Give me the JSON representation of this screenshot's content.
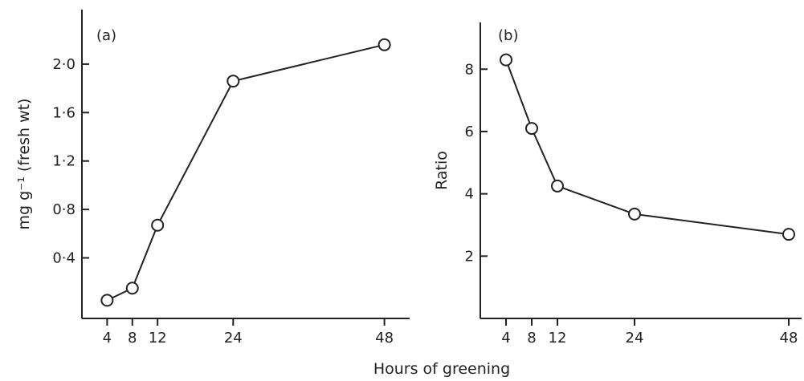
{
  "shared_xlabel": "Hours of greening",
  "chart_data": [
    {
      "type": "line",
      "panel_label": "(a)",
      "x": [
        4,
        8,
        12,
        24,
        48
      ],
      "y": [
        0.05,
        0.15,
        0.67,
        1.86,
        2.16
      ],
      "xticks": [
        "4",
        "8",
        "12",
        "24",
        "48"
      ],
      "yticks": [
        "0·4",
        "0·8",
        "1·2",
        "1·6",
        "2·0"
      ],
      "ytick_values": [
        0.4,
        0.8,
        1.2,
        1.6,
        2.0
      ],
      "xlim": [
        0,
        52
      ],
      "ylim": [
        -0.1,
        2.45
      ],
      "xlabel": "Hours of greening",
      "ylabel": "mg g⁻¹ (fresh wt)",
      "marker": "open-circle"
    },
    {
      "type": "line",
      "panel_label": "(b)",
      "x": [
        4,
        8,
        12,
        24,
        48
      ],
      "y": [
        8.3,
        6.1,
        4.25,
        3.35,
        2.7
      ],
      "xticks": [
        "4",
        "8",
        "12",
        "24",
        "48"
      ],
      "yticks": [
        "2",
        "4",
        "6",
        "8"
      ],
      "ytick_values": [
        2,
        4,
        6,
        8
      ],
      "xlim": [
        0,
        50
      ],
      "ylim": [
        0,
        9.5
      ],
      "xlabel": "Hours of greening",
      "ylabel": "Ratio",
      "marker": "open-circle"
    }
  ]
}
